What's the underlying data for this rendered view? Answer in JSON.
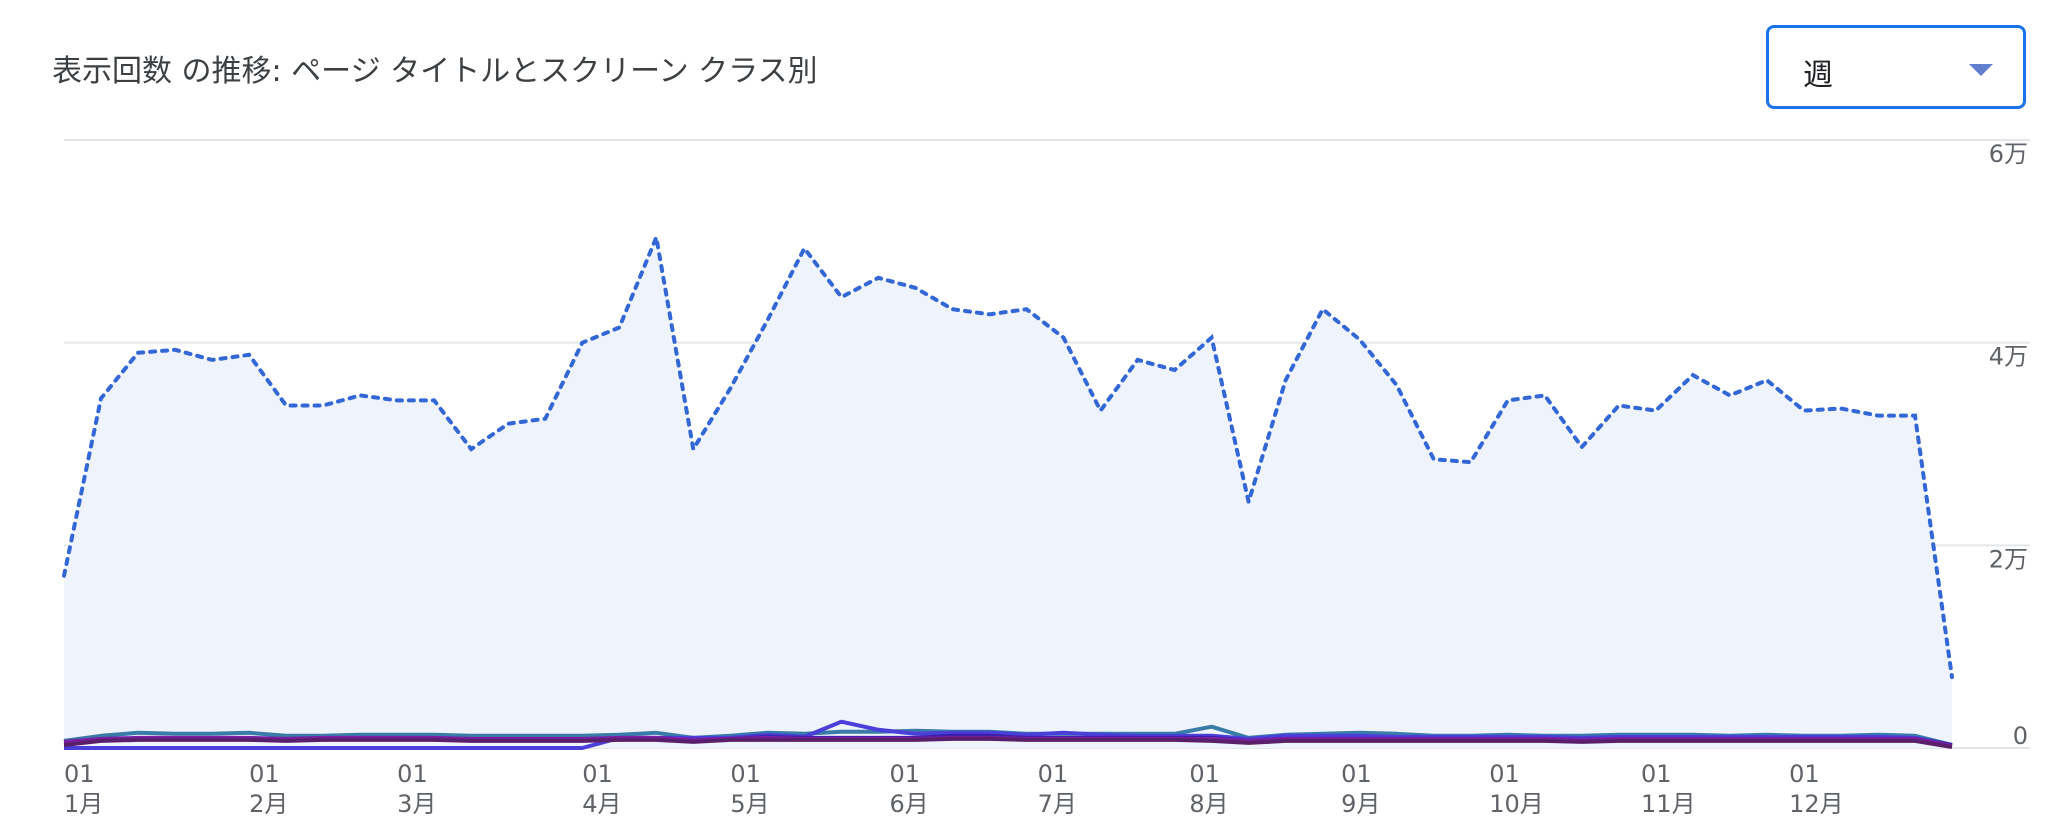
{
  "title": "表示回数 の推移: ページ タイトルとスクリーン クラス別",
  "period_select": {
    "value": "週"
  },
  "colors": {
    "total": "#3367d6",
    "area": "#eef3fc",
    "grid": "#e3e6ea",
    "series": [
      "#3a7ca8",
      "#4a3fd9",
      "#3b1fa8",
      "#7a1fa2",
      "#5a1f6a"
    ]
  },
  "chart_data": {
    "type": "line",
    "title": "表示回数 の推移: ページ タイトルとスクリーン クラス別",
    "y_axis": {
      "position": "right",
      "min": 0,
      "max": 60000,
      "ticks": [
        0,
        20000,
        40000,
        60000
      ],
      "tick_labels": [
        "0",
        "2万",
        "4万",
        "6万"
      ]
    },
    "x_axis": {
      "months": [
        {
          "day": "01",
          "month": "1月",
          "week_index": 0
        },
        {
          "day": "01",
          "month": "2月",
          "week_index": 5
        },
        {
          "day": "01",
          "month": "3月",
          "week_index": 9
        },
        {
          "day": "01",
          "month": "4月",
          "week_index": 14
        },
        {
          "day": "01",
          "month": "5月",
          "week_index": 18
        },
        {
          "day": "01",
          "month": "6月",
          "week_index": 22.3
        },
        {
          "day": "01",
          "month": "7月",
          "week_index": 26.3
        },
        {
          "day": "01",
          "month": "8月",
          "week_index": 30.4
        },
        {
          "day": "01",
          "month": "9月",
          "week_index": 34.5
        },
        {
          "day": "01",
          "month": "10月",
          "week_index": 38.5
        },
        {
          "day": "01",
          "month": "11月",
          "week_index": 42.6
        },
        {
          "day": "01",
          "month": "12月",
          "week_index": 46.6
        }
      ]
    },
    "total_series": {
      "style": "dotted",
      "values": [
        17000,
        34500,
        39000,
        39300,
        38300,
        38800,
        33800,
        33800,
        34800,
        34300,
        34300,
        29500,
        32000,
        32500,
        40000,
        41500,
        50400,
        29500,
        35500,
        42200,
        49300,
        44500,
        46400,
        45400,
        43300,
        42800,
        43300,
        40500,
        33300,
        38300,
        37300,
        40500,
        24300,
        36300,
        43300,
        40300,
        35800,
        28500,
        28200,
        34300,
        34800,
        29700,
        33800,
        33300,
        36800,
        34800,
        36300,
        33300,
        33500,
        32800,
        32800,
        7000
      ]
    },
    "series": [
      {
        "values": [
          700,
          1200,
          1500,
          1400,
          1400,
          1500,
          1200,
          1200,
          1300,
          1300,
          1300,
          1200,
          1200,
          1200,
          1200,
          1300,
          1500,
          1000,
          1200,
          1500,
          1400,
          1600,
          1600,
          1700,
          1600,
          1600,
          1400,
          1400,
          1400,
          1400,
          1400,
          2100,
          1000,
          1300,
          1400,
          1500,
          1400,
          1200,
          1200,
          1300,
          1200,
          1200,
          1300,
          1300,
          1300,
          1200,
          1300,
          1200,
          1200,
          1300,
          1200,
          300
        ]
      },
      {
        "values": [
          0,
          0,
          0,
          0,
          0,
          0,
          0,
          0,
          0,
          0,
          0,
          0,
          0,
          0,
          0,
          1000,
          1000,
          1000,
          1000,
          1300,
          1100,
          2600,
          1800,
          1400,
          1500,
          1500,
          1300,
          1500,
          1300,
          1200,
          1200,
          1200,
          900,
          1200,
          1200,
          1200,
          1100,
          1100,
          1100,
          1100,
          1100,
          1000,
          1100,
          1100,
          1100,
          1100,
          1100,
          1100,
          1100,
          1100,
          1000,
          300
        ]
      },
      {
        "values": [
          500,
          800,
          900,
          900,
          900,
          900,
          800,
          900,
          900,
          900,
          900,
          800,
          800,
          800,
          800,
          900,
          900,
          700,
          900,
          1100,
          1000,
          1000,
          1000,
          1000,
          1200,
          1200,
          1000,
          1000,
          1000,
          1000,
          1000,
          1000,
          700,
          900,
          900,
          900,
          900,
          900,
          900,
          900,
          900,
          800,
          900,
          900,
          900,
          900,
          900,
          900,
          900,
          900,
          900,
          300
        ]
      },
      {
        "values": [
          600,
          900,
          1000,
          1000,
          1000,
          1000,
          900,
          1000,
          1000,
          1000,
          1000,
          900,
          900,
          900,
          900,
          1000,
          1000,
          800,
          900,
          1000,
          900,
          900,
          900,
          900,
          1000,
          1000,
          900,
          900,
          900,
          900,
          900,
          900,
          700,
          900,
          900,
          900,
          900,
          900,
          900,
          900,
          900,
          800,
          900,
          900,
          900,
          900,
          900,
          900,
          900,
          900,
          900,
          200
        ]
      },
      {
        "values": [
          300,
          700,
          800,
          800,
          800,
          800,
          700,
          800,
          800,
          800,
          800,
          700,
          700,
          700,
          700,
          800,
          800,
          600,
          800,
          800,
          800,
          800,
          800,
          800,
          900,
          900,
          800,
          800,
          800,
          800,
          800,
          700,
          500,
          700,
          700,
          700,
          700,
          700,
          700,
          700,
          700,
          600,
          700,
          700,
          700,
          700,
          700,
          700,
          700,
          700,
          700,
          100
        ]
      }
    ]
  }
}
